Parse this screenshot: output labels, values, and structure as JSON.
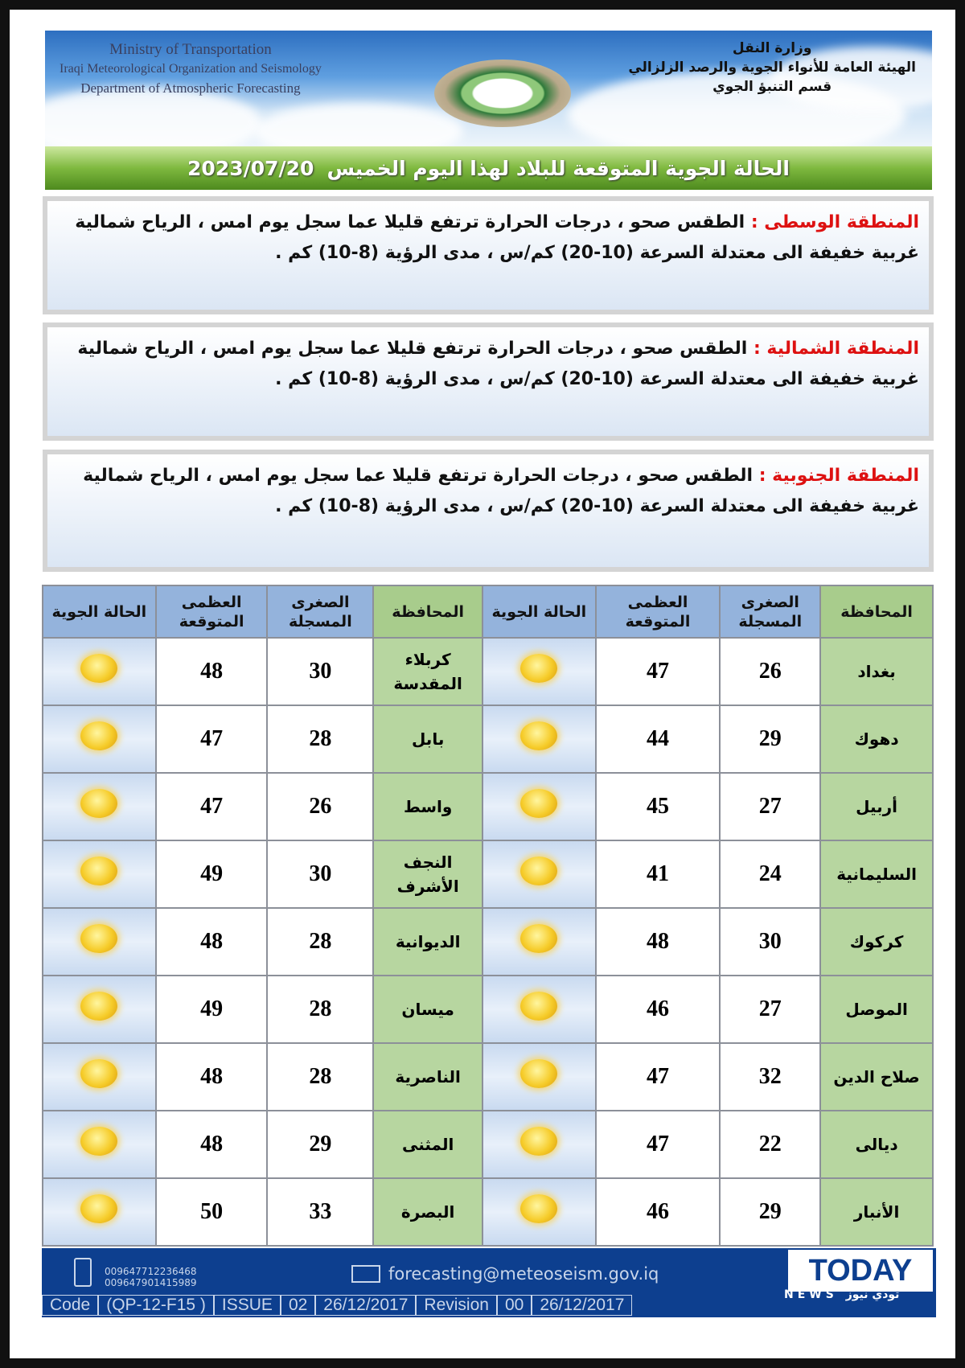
{
  "header": {
    "en_lines": [
      "Ministry of Transportation",
      "Iraqi Meteorological Organization and Seismology",
      "Department of Atmospheric Forecasting"
    ],
    "ar_lines": [
      "وزارة النقل",
      "الهيئة العامة للأنواء الجوية والرصد الزلزالي",
      "قسم التنبؤ الجوي"
    ]
  },
  "title": {
    "text": "الحالة الجوية المتوقعة للبلاد لهذا اليوم الخميس",
    "date": "2023/07/20"
  },
  "regions": [
    {
      "label": "المنطقة الوسطى :",
      "text": " الطقس صحو ، درجات الحرارة ترتفع قليلا عما سجل يوم امس ، الرياح شمالية غربية خفيفة الى معتدلة السرعة (10-20) كم/س ، مدى الرؤية (8-10) كم ."
    },
    {
      "label": "المنطقة الشمالية :",
      "text": " الطقس صحو ، درجات الحرارة ترتفع قليلا عما سجل يوم امس ، الرياح شمالية غربية خفيفة الى معتدلة السرعة (10-20) كم/س ، مدى الرؤية (8-10) كم ."
    },
    {
      "label": "المنطقة الجنوبية :",
      "text": " الطقس صحو ، درجات الحرارة ترتفع قليلا عما سجل يوم امس ، الرياح شمالية غربية خفيفة الى معتدلة السرعة (10-20) كم/س ، مدى الرؤية (8-10) كم ."
    }
  ],
  "table": {
    "headers": [
      "المحافظة",
      "الصغرى المسجلة",
      "العظمى المتوقعة",
      "الحالة الجوية"
    ],
    "weather_icon": "sun-icon",
    "right": [
      [
        "بغداد",
        "26",
        "47"
      ],
      [
        "دهوك",
        "29",
        "44"
      ],
      [
        "أربيل",
        "27",
        "45"
      ],
      [
        "السليمانية",
        "24",
        "41"
      ],
      [
        "كركوك",
        "30",
        "48"
      ],
      [
        "الموصل",
        "27",
        "46"
      ],
      [
        "صلاح الدين",
        "32",
        "47"
      ],
      [
        "ديالى",
        "22",
        "47"
      ],
      [
        "الأنبار",
        "29",
        "46"
      ]
    ],
    "left": [
      [
        "كربلاء المقدسة",
        "30",
        "48"
      ],
      [
        "بابل",
        "28",
        "47"
      ],
      [
        "واسط",
        "26",
        "47"
      ],
      [
        "النجف الأشرف",
        "30",
        "49"
      ],
      [
        "الديوانية",
        "28",
        "48"
      ],
      [
        "ميسان",
        "28",
        "49"
      ],
      [
        "الناصرية",
        "28",
        "48"
      ],
      [
        "المثنى",
        "29",
        "48"
      ],
      [
        "البصرة",
        "33",
        "50"
      ]
    ]
  },
  "footer": {
    "phones": [
      "009647712236468",
      "009647901415989"
    ],
    "email": "forecasting@meteoseism.gov.iq",
    "code": [
      "Code",
      "(QP-12-F15 )",
      "ISSUE",
      "02",
      "26/12/2017",
      "Revision",
      "00",
      "26/12/2017"
    ]
  },
  "watermark": {
    "brand": "TODAY",
    "sub": "NEWS تودي نيوز"
  }
}
